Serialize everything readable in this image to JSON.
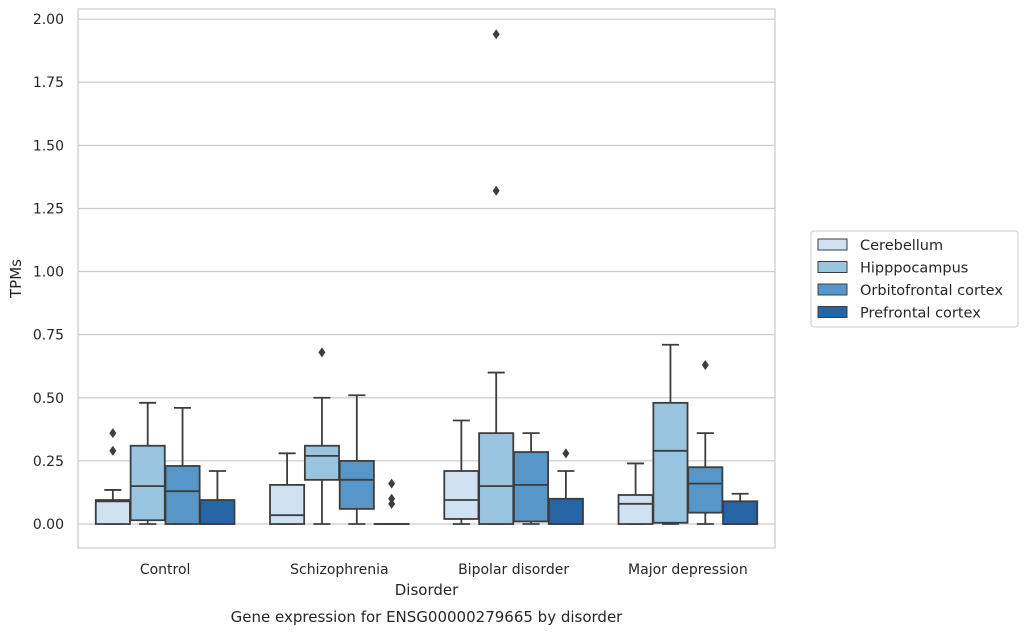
{
  "chart_data": {
    "type": "boxplot",
    "title": "Gene expression for ENSG00000279665 by disorder",
    "xlabel": "Disorder",
    "ylabel": "TPMs",
    "ylim": [
      -0.095,
      2.04
    ],
    "yticks": [
      "0.00",
      "0.25",
      "0.50",
      "0.75",
      "1.00",
      "1.25",
      "1.50",
      "1.75",
      "2.00"
    ],
    "grid": true,
    "legend_position": "right",
    "categories": [
      "Control",
      "Schizophrenia",
      "Bipolar disorder",
      "Major depression"
    ],
    "series": [
      {
        "name": "Cerebellum",
        "color": "#d0e1f2",
        "boxes": [
          {
            "whislo": 0.0,
            "q1": 0.0,
            "med": 0.09,
            "q3": 0.095,
            "whishi": 0.135,
            "fliers": [
              0.29,
              0.36
            ]
          },
          {
            "whislo": 0.0,
            "q1": 0.0,
            "med": 0.035,
            "q3": 0.155,
            "whishi": 0.28,
            "fliers": []
          },
          {
            "whislo": 0.0,
            "q1": 0.02,
            "med": 0.095,
            "q3": 0.21,
            "whishi": 0.41,
            "fliers": []
          },
          {
            "whislo": 0.0,
            "q1": 0.0,
            "med": 0.08,
            "q3": 0.115,
            "whishi": 0.24,
            "fliers": []
          }
        ]
      },
      {
        "name": "Hipppocampus",
        "color": "#9ac5e0",
        "boxes": [
          {
            "whislo": 0.0,
            "q1": 0.015,
            "med": 0.15,
            "q3": 0.31,
            "whishi": 0.48,
            "fliers": []
          },
          {
            "whislo": 0.0,
            "q1": 0.175,
            "med": 0.27,
            "q3": 0.31,
            "whishi": 0.5,
            "fliers": [
              0.68
            ]
          },
          {
            "whislo": 0.0,
            "q1": 0.0,
            "med": 0.15,
            "q3": 0.36,
            "whishi": 0.6,
            "fliers": [
              1.32,
              1.94
            ]
          },
          {
            "whislo": 0.0,
            "q1": 0.005,
            "med": 0.29,
            "q3": 0.48,
            "whishi": 0.71,
            "fliers": []
          }
        ]
      },
      {
        "name": "Orbitofrontal cortex",
        "color": "#5696c8",
        "boxes": [
          {
            "whislo": 0.0,
            "q1": 0.0,
            "med": 0.13,
            "q3": 0.23,
            "whishi": 0.46,
            "fliers": []
          },
          {
            "whislo": 0.0,
            "q1": 0.06,
            "med": 0.175,
            "q3": 0.25,
            "whishi": 0.51,
            "fliers": []
          },
          {
            "whislo": 0.0,
            "q1": 0.01,
            "med": 0.155,
            "q3": 0.285,
            "whishi": 0.36,
            "fliers": []
          },
          {
            "whislo": 0.0,
            "q1": 0.045,
            "med": 0.16,
            "q3": 0.225,
            "whishi": 0.36,
            "fliers": [
              0.63
            ]
          }
        ]
      },
      {
        "name": "Prefrontal cortex",
        "color": "#2565a6",
        "boxes": [
          {
            "whislo": 0.0,
            "q1": 0.0,
            "med": 0.0,
            "q3": 0.095,
            "whishi": 0.21,
            "fliers": []
          },
          {
            "whislo": 0.0,
            "q1": 0.0,
            "med": 0.0,
            "q3": 0.0,
            "whishi": 0.0,
            "fliers": [
              0.08,
              0.1,
              0.16
            ]
          },
          {
            "whislo": 0.0,
            "q1": 0.0,
            "med": 0.0,
            "q3": 0.1,
            "whishi": 0.21,
            "fliers": [
              0.28
            ]
          },
          {
            "whislo": 0.0,
            "q1": 0.0,
            "med": 0.0,
            "q3": 0.09,
            "whishi": 0.12,
            "fliers": []
          }
        ]
      }
    ]
  }
}
